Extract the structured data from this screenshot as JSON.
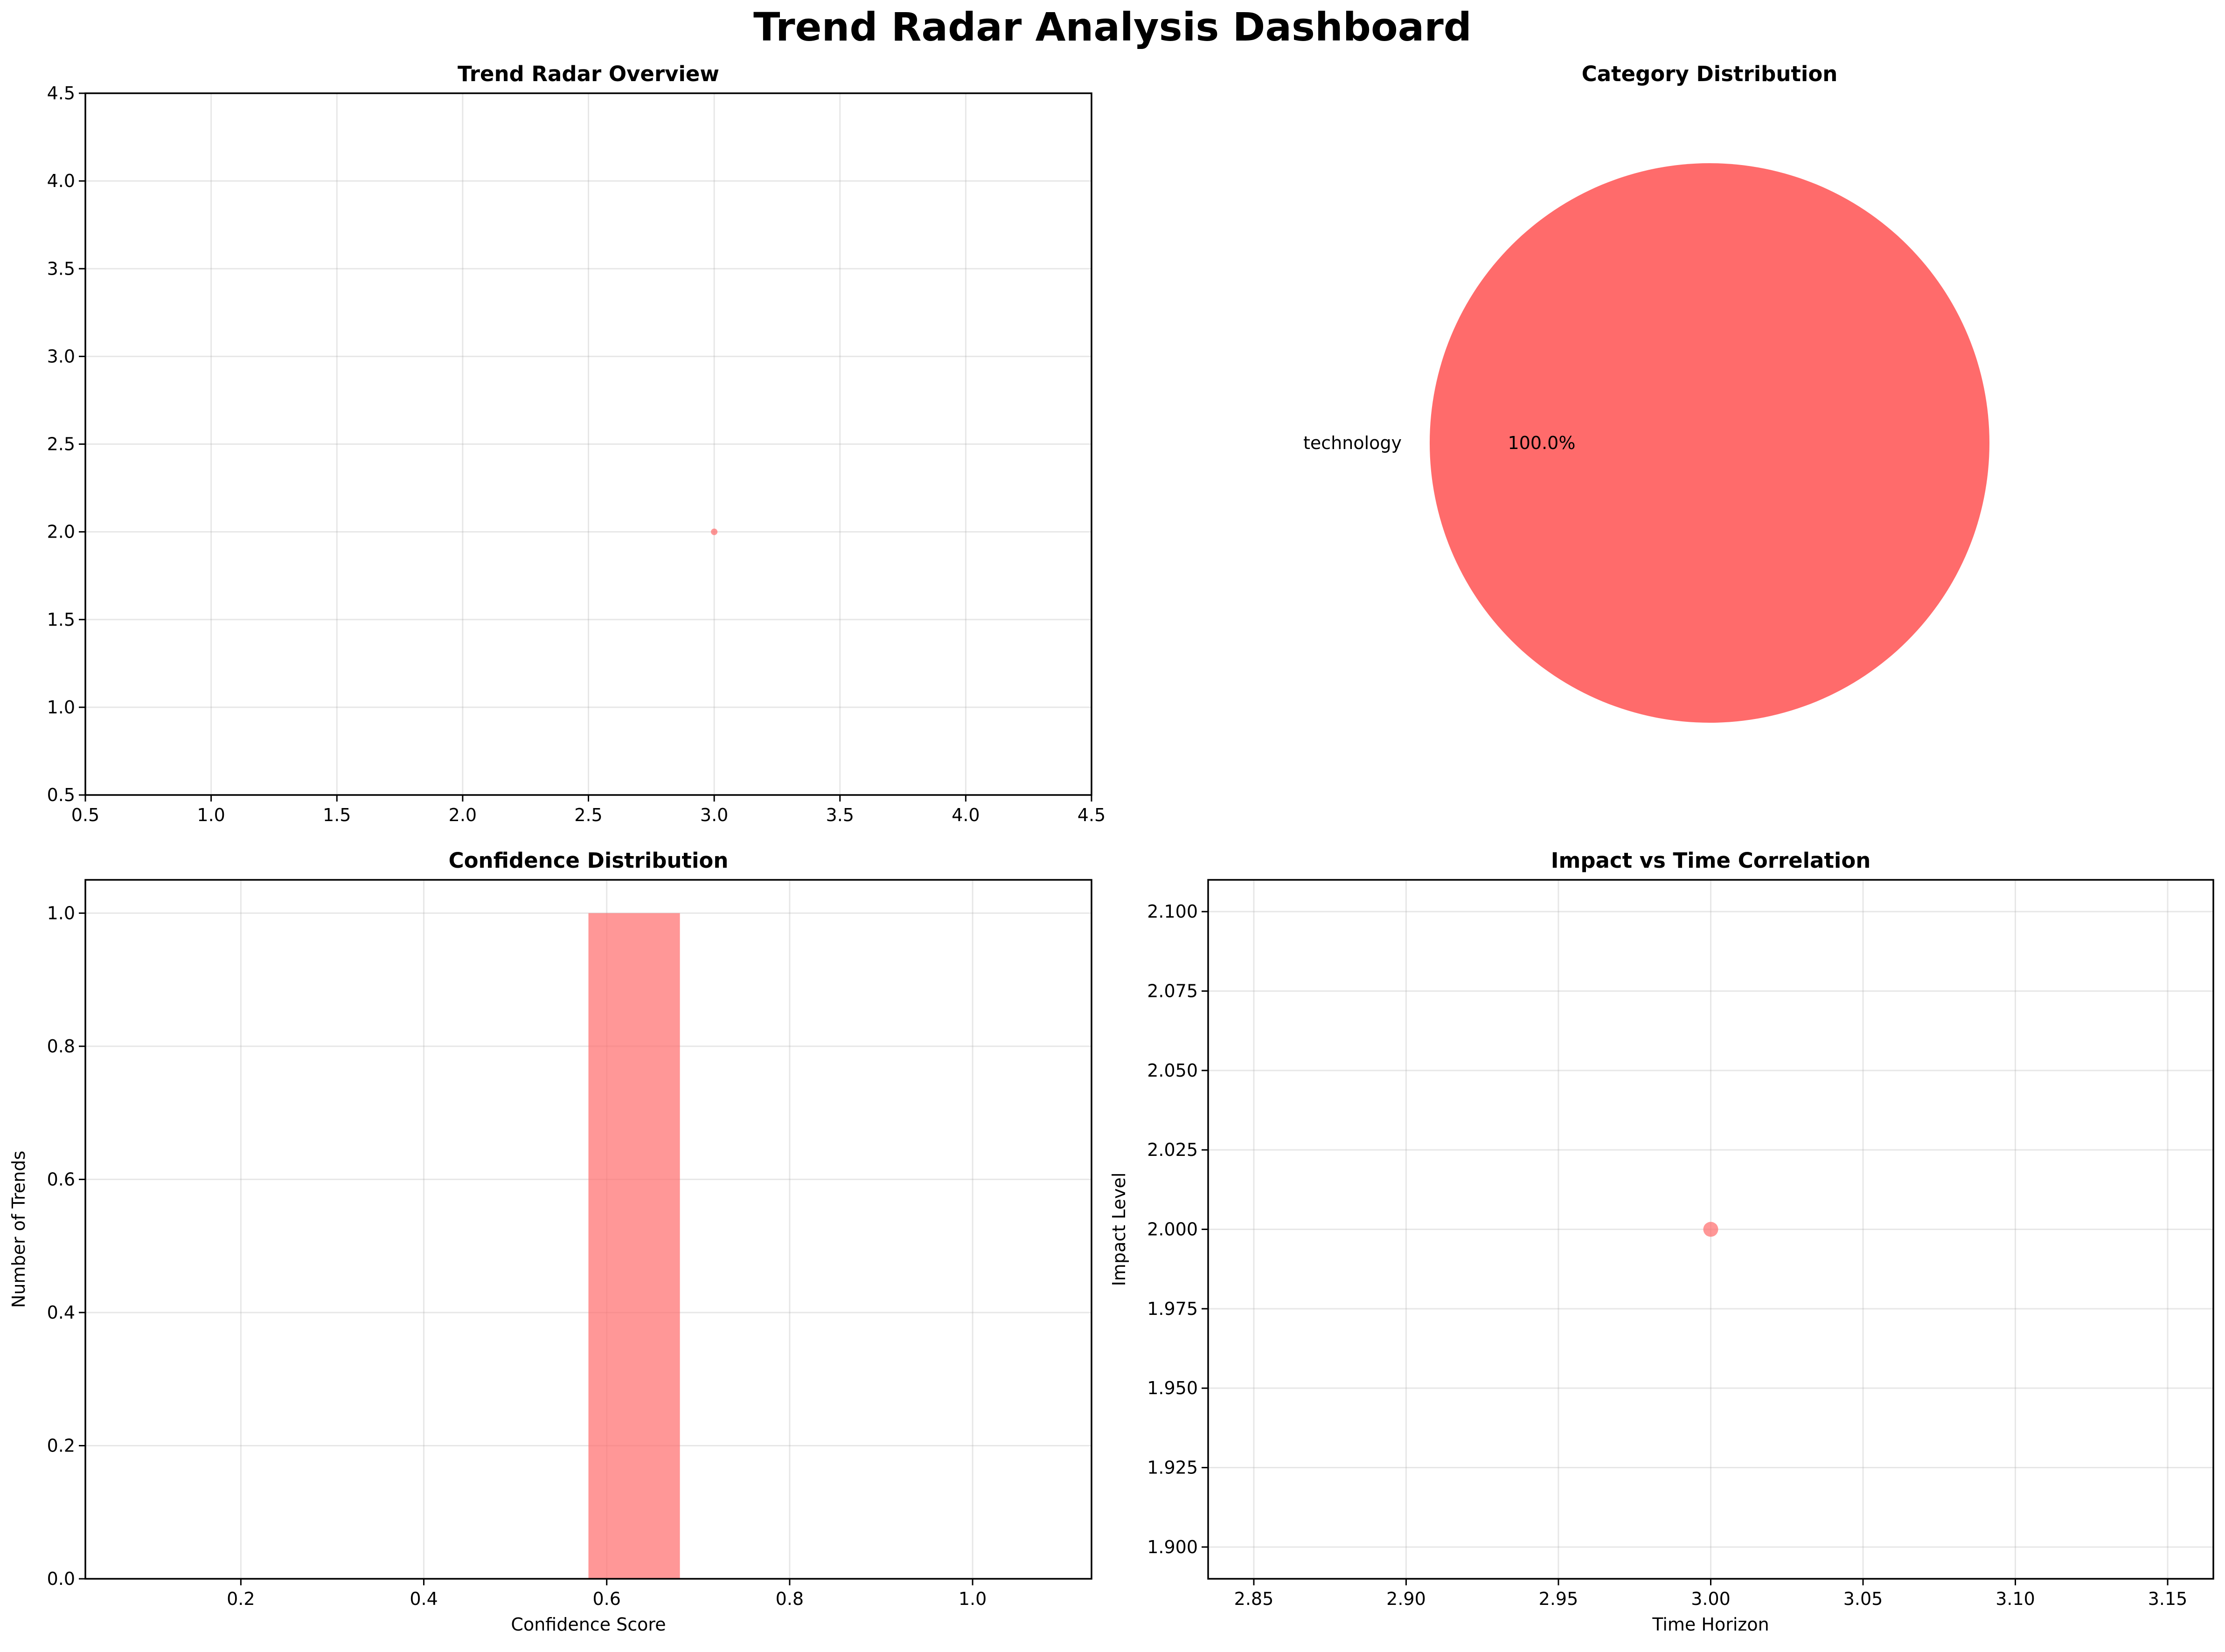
{
  "title": "Trend Radar Analysis Dashboard",
  "colors": {
    "accent": "#ff6b6b",
    "grid": "#b0b0b0",
    "axis": "#000000"
  },
  "chart_data": [
    {
      "id": "radar",
      "type": "scatter",
      "title": "Trend Radar Overview",
      "xlabel": "",
      "ylabel": "",
      "xlim": [
        0.5,
        4.5
      ],
      "ylim": [
        0.5,
        4.5
      ],
      "xticks": [
        "0.5",
        "1.0",
        "1.5",
        "2.0",
        "2.5",
        "3.0",
        "3.5",
        "4.0",
        "4.5"
      ],
      "yticks": [
        "0.5",
        "1.0",
        "1.5",
        "2.0",
        "2.5",
        "3.0",
        "3.5",
        "4.0",
        "4.5"
      ],
      "points": [
        {
          "x": 3.0,
          "y": 2.0
        }
      ],
      "grid": true
    },
    {
      "id": "pie",
      "type": "pie",
      "title": "Category Distribution",
      "slices": [
        {
          "label": "technology",
          "value": 100.0,
          "pct_label": "100.0%"
        }
      ]
    },
    {
      "id": "hist",
      "type": "bar",
      "title": "Confidence Distribution",
      "xlabel": "Confidence Score",
      "ylabel": "Number of Trends",
      "xlim": [
        0.03,
        1.13
      ],
      "ylim": [
        0,
        1.05
      ],
      "xticks": [
        "0.2",
        "0.4",
        "0.6",
        "0.8",
        "1.0"
      ],
      "yticks": [
        "0.0",
        "0.2",
        "0.4",
        "0.6",
        "0.8",
        "1.0"
      ],
      "bars": [
        {
          "x0": 0.58,
          "x1": 0.68,
          "value": 1
        }
      ],
      "grid": true
    },
    {
      "id": "impact",
      "type": "scatter",
      "title": "Impact vs Time Correlation",
      "xlabel": "Time Horizon",
      "ylabel": "Impact Level",
      "xlim": [
        2.835,
        3.165
      ],
      "ylim": [
        1.89,
        2.11
      ],
      "xticks": [
        "2.85",
        "2.90",
        "2.95",
        "3.00",
        "3.05",
        "3.10",
        "3.15"
      ],
      "yticks": [
        "1.900",
        "1.925",
        "1.950",
        "1.975",
        "2.000",
        "2.025",
        "2.050",
        "2.075",
        "2.100"
      ],
      "points": [
        {
          "x": 3.0,
          "y": 2.0
        }
      ],
      "grid": true
    }
  ]
}
